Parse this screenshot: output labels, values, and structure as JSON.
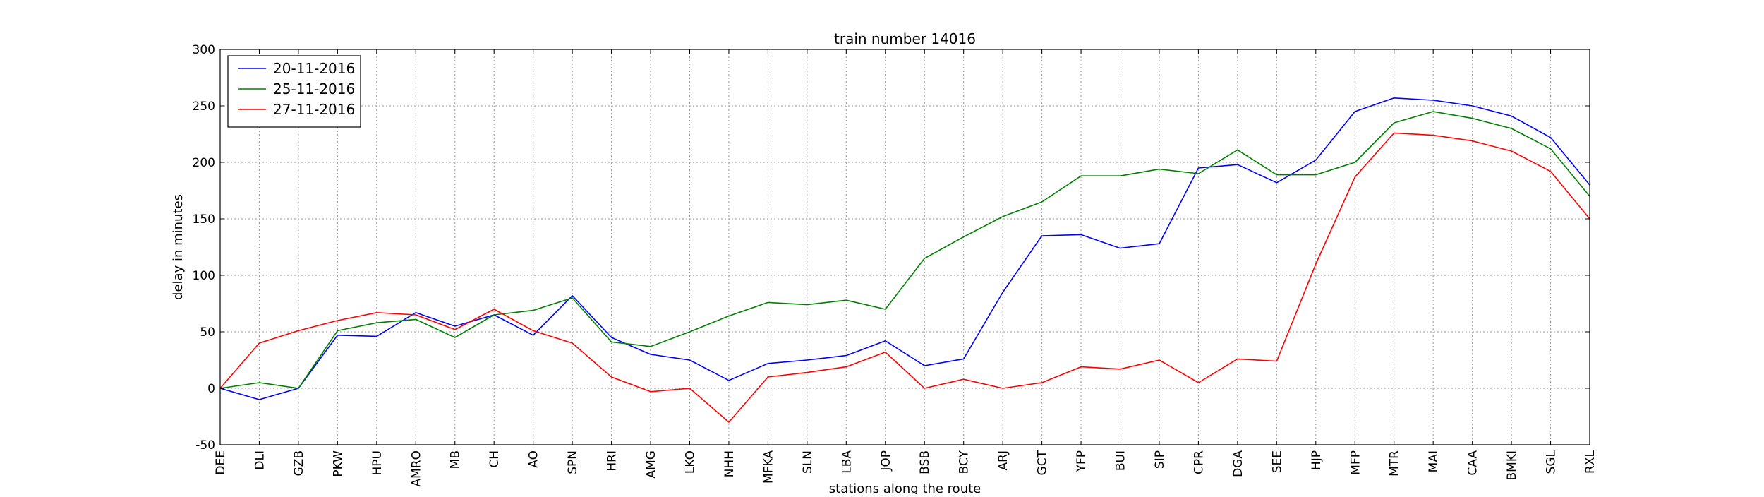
{
  "chart_data": {
    "type": "line",
    "title": "train number 14016",
    "xlabel": "stations along the route",
    "ylabel": "delay in minutes",
    "ylim": [
      -50,
      300
    ],
    "yticks": [
      -50,
      0,
      50,
      100,
      150,
      200,
      250,
      300
    ],
    "grid": true,
    "legend_position": "top-left",
    "categories": [
      "DEE",
      "DLI",
      "GZB",
      "PKW",
      "HPU",
      "AMRO",
      "MB",
      "CH",
      "AO",
      "SPN",
      "HRI",
      "AMG",
      "LKO",
      "NHH",
      "MFKA",
      "SLN",
      "LBA",
      "JOP",
      "BSB",
      "BCY",
      "ARJ",
      "GCT",
      "YFP",
      "BUI",
      "SIP",
      "CPR",
      "DGA",
      "SEE",
      "HJP",
      "MFP",
      "MTR",
      "MAI",
      "CAA",
      "BMKI",
      "SGL",
      "RXL"
    ],
    "series": [
      {
        "name": "20-11-2016",
        "color": "#0000ff",
        "values": [
          0,
          -10,
          0,
          47,
          46,
          67,
          55,
          65,
          47,
          82,
          45,
          30,
          25,
          7,
          22,
          25,
          29,
          42,
          20,
          26,
          85,
          135,
          136,
          124,
          128,
          195,
          198,
          182,
          202,
          245,
          257,
          255,
          250,
          241,
          222,
          180
        ]
      },
      {
        "name": "25-11-2016",
        "color": "#008000",
        "values": [
          0,
          5,
          0,
          51,
          58,
          61,
          45,
          65,
          69,
          80,
          41,
          37,
          50,
          64,
          76,
          74,
          78,
          70,
          115,
          134,
          152,
          165,
          188,
          188,
          194,
          190,
          211,
          189,
          189,
          200,
          235,
          245,
          239,
          230,
          212,
          170
        ]
      },
      {
        "name": "27-11-2016",
        "color": "#ff0000",
        "values": [
          0,
          40,
          51,
          60,
          67,
          65,
          52,
          70,
          51,
          40,
          10,
          -3,
          0,
          -30,
          10,
          14,
          19,
          32,
          0,
          8,
          0,
          5,
          19,
          17,
          25,
          5,
          26,
          24,
          110,
          187,
          226,
          224,
          219,
          210,
          192,
          150
        ]
      }
    ]
  }
}
